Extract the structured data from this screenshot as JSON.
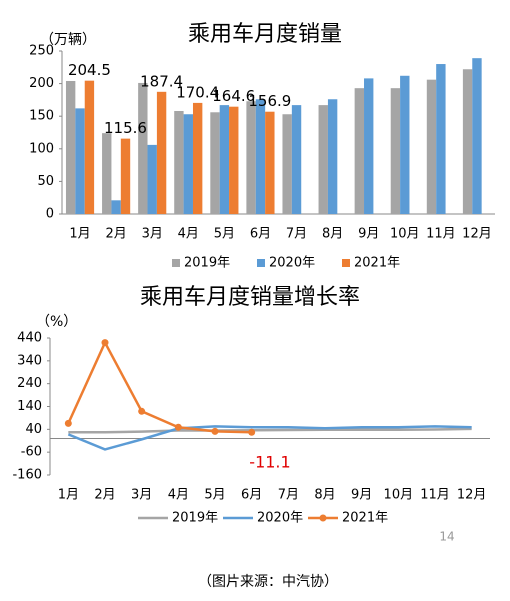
{
  "chart_data": [
    {
      "type": "bar",
      "title": "乘用车月度销量",
      "y_label": "（万辆）",
      "categories": [
        "1月",
        "2月",
        "3月",
        "4月",
        "5月",
        "6月",
        "7月",
        "8月",
        "9月",
        "10月",
        "11月",
        "12月"
      ],
      "series": [
        {
          "name": "2019年",
          "color": "#a5a5a5",
          "values": [
            204,
            124,
            201,
            158,
            156,
            173,
            153,
            167,
            193,
            193,
            206,
            222
          ]
        },
        {
          "name": "2020年",
          "color": "#5b9bd5",
          "values": [
            162,
            21,
            106,
            153,
            167,
            176,
            167,
            176,
            208,
            212,
            230,
            239
          ]
        },
        {
          "name": "2021年",
          "color": "#ed7d31",
          "values": [
            204.5,
            115.6,
            187.4,
            170.4,
            164.6,
            156.9,
            null,
            null,
            null,
            null,
            null,
            null
          ]
        }
      ],
      "ylim": [
        0,
        250
      ],
      "yticks": [
        0,
        50,
        100,
        150,
        200,
        250
      ]
    },
    {
      "type": "line",
      "title": "乘用车月度销量增长率",
      "y_label": "（%）",
      "categories": [
        "1月",
        "2月",
        "3月",
        "4月",
        "5月",
        "6月",
        "7月",
        "8月",
        "9月",
        "10月",
        "11月",
        "12月"
      ],
      "series": [
        {
          "name": "2019年",
          "color": "#a5a5a5",
          "values": [
            27,
            27,
            30,
            35,
            35,
            36,
            37,
            38,
            38,
            38,
            39,
            42
          ]
        },
        {
          "name": "2020年",
          "color": "#5b9bd5",
          "values": [
            18,
            -48,
            -4,
            44,
            53,
            49,
            49,
            45,
            49,
            49,
            53,
            49
          ]
        },
        {
          "name": "2021年",
          "color": "#ed7d31",
          "markers": true,
          "values": [
            66,
            420,
            119,
            49,
            31,
            27,
            null,
            null,
            null,
            null,
            null,
            null
          ]
        }
      ],
      "annotations": [
        "-11.1"
      ],
      "ylim": [
        -160,
        440
      ],
      "yticks": [
        -160,
        -60,
        40,
        140,
        240,
        340,
        440
      ]
    }
  ],
  "page_number": "14",
  "caption": "（图片来源：中汽协）"
}
